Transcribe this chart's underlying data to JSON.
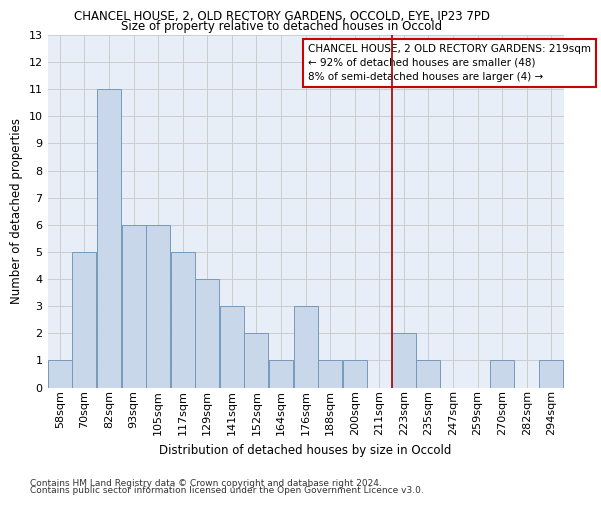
{
  "title": "CHANCEL HOUSE, 2, OLD RECTORY GARDENS, OCCOLD, EYE, IP23 7PD",
  "subtitle": "Size of property relative to detached houses in Occold",
  "xlabel": "Distribution of detached houses by size in Occold",
  "ylabel": "Number of detached properties",
  "footer_line1": "Contains HM Land Registry data © Crown copyright and database right 2024.",
  "footer_line2": "Contains public sector information licensed under the Open Government Licence v3.0.",
  "bin_labels": [
    "58sqm",
    "70sqm",
    "82sqm",
    "93sqm",
    "105sqm",
    "117sqm",
    "129sqm",
    "141sqm",
    "152sqm",
    "164sqm",
    "176sqm",
    "188sqm",
    "200sqm",
    "211sqm",
    "223sqm",
    "235sqm",
    "247sqm",
    "259sqm",
    "270sqm",
    "282sqm",
    "294sqm"
  ],
  "counts": [
    1,
    5,
    11,
    6,
    6,
    5,
    4,
    3,
    2,
    1,
    3,
    1,
    1,
    0,
    2,
    1,
    0,
    0,
    1,
    0,
    1
  ],
  "bar_color": "#c8d8ea",
  "bar_edge_color": "#7799bb",
  "grid_color": "#cccccc",
  "vline_color": "#aa1111",
  "vline_bin_index": 14,
  "annotation_text": "CHANCEL HOUSE, 2 OLD RECTORY GARDENS: 219sqm\n← 92% of detached houses are smaller (48)\n8% of semi-detached houses are larger (4) →",
  "annotation_box_color": "#cc0000",
  "ylim": [
    0,
    13
  ],
  "yticks": [
    0,
    1,
    2,
    3,
    4,
    5,
    6,
    7,
    8,
    9,
    10,
    11,
    12,
    13
  ],
  "bg_color": "#e8eef8",
  "title_fontsize": 8.5,
  "subtitle_fontsize": 8.5,
  "axis_label_fontsize": 8.5,
  "tick_fontsize": 8.0,
  "footer_fontsize": 6.5,
  "annot_fontsize": 7.5
}
